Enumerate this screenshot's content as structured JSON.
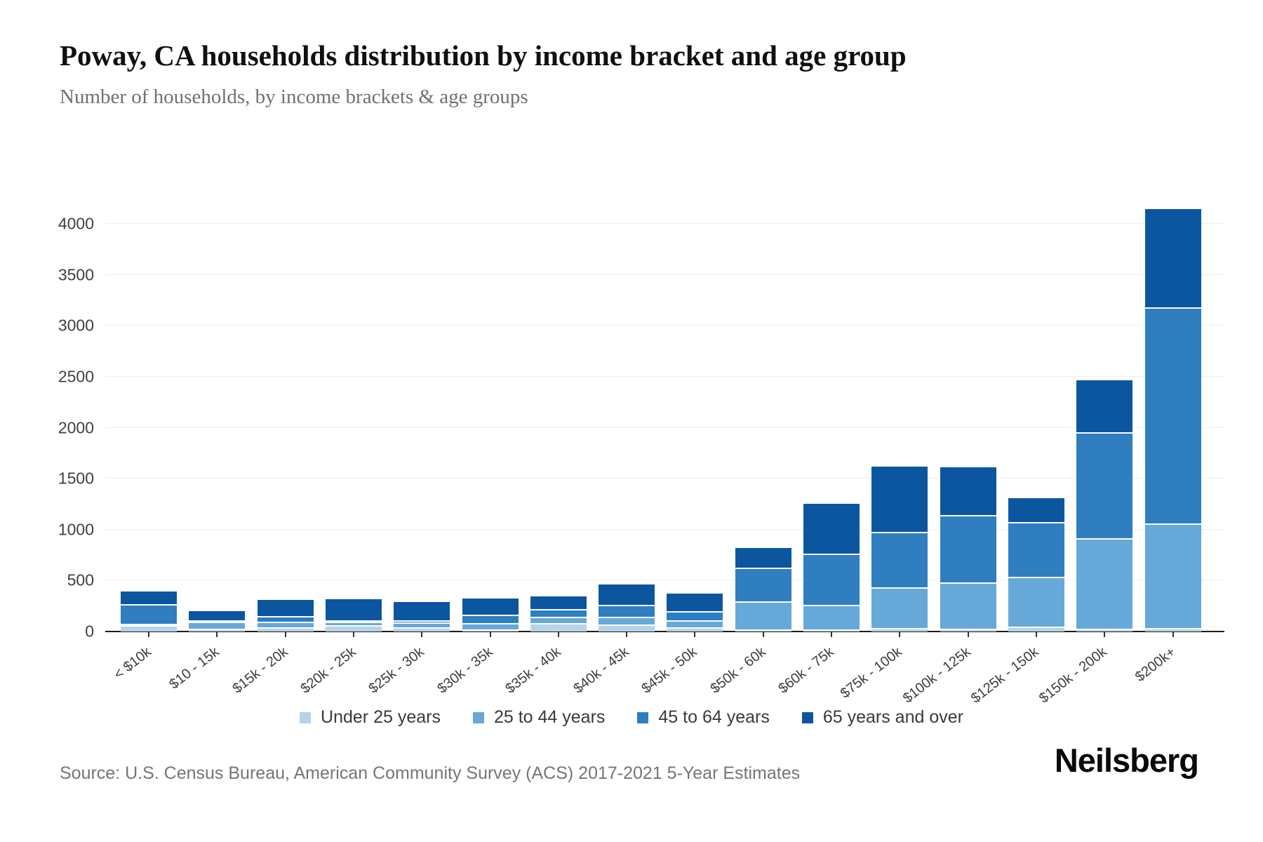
{
  "header": {
    "title": "Poway, CA households distribution by income bracket and age group",
    "subtitle": "Number of households, by income brackets & age groups"
  },
  "chart_data": {
    "type": "bar",
    "stacked": true,
    "title": "Poway, CA households distribution by income bracket and age group",
    "subtitle": "Number of households, by income brackets & age groups",
    "xlabel": "",
    "ylabel": "Number of households",
    "ylim": [
      0,
      4200
    ],
    "yticks": [
      0,
      500,
      1000,
      1500,
      2000,
      2500,
      3000,
      3500,
      4000
    ],
    "grid": "horizontal",
    "legend_position": "bottom",
    "categories": [
      "< $10k",
      "$10 - 15k",
      "$15k - 20k",
      "$20k - 25k",
      "$25k - 30k",
      "$30k - 35k",
      "$35k - 40k",
      "$40k - 45k",
      "$45k - 50k",
      "$50k - 60k",
      "$60k - 75k",
      "$75k - 100k",
      "$100k - 125k",
      "$125k - 150k",
      "$150k - 200k",
      "$200k+"
    ],
    "series": [
      {
        "name": "Under 25 years",
        "color": "#b7d3e8",
        "values": [
          45,
          15,
          30,
          50,
          25,
          10,
          70,
          55,
          30,
          10,
          10,
          20,
          15,
          35,
          15,
          20
        ]
      },
      {
        "name": "25 to 44 years",
        "color": "#66a9d8",
        "values": [
          15,
          70,
          50,
          35,
          50,
          60,
          60,
          75,
          70,
          275,
          235,
          400,
          450,
          485,
          885,
          1030
        ]
      },
      {
        "name": "45 to 64 years",
        "color": "#2f7ec0",
        "values": [
          195,
          15,
          55,
          15,
          20,
          85,
          80,
          120,
          85,
          330,
          505,
          545,
          665,
          540,
          1040,
          2120
        ]
      },
      {
        "name": "65 years and over",
        "color": "#0c56a0",
        "values": [
          135,
          100,
          175,
          220,
          195,
          170,
          135,
          210,
          185,
          205,
          505,
          655,
          480,
          245,
          525,
          975
        ]
      }
    ]
  },
  "footer": {
    "source": "Source: U.S. Census Bureau, American Community Survey (ACS) 2017-2021 5-Year Estimates",
    "brand": "Neilsberg"
  }
}
